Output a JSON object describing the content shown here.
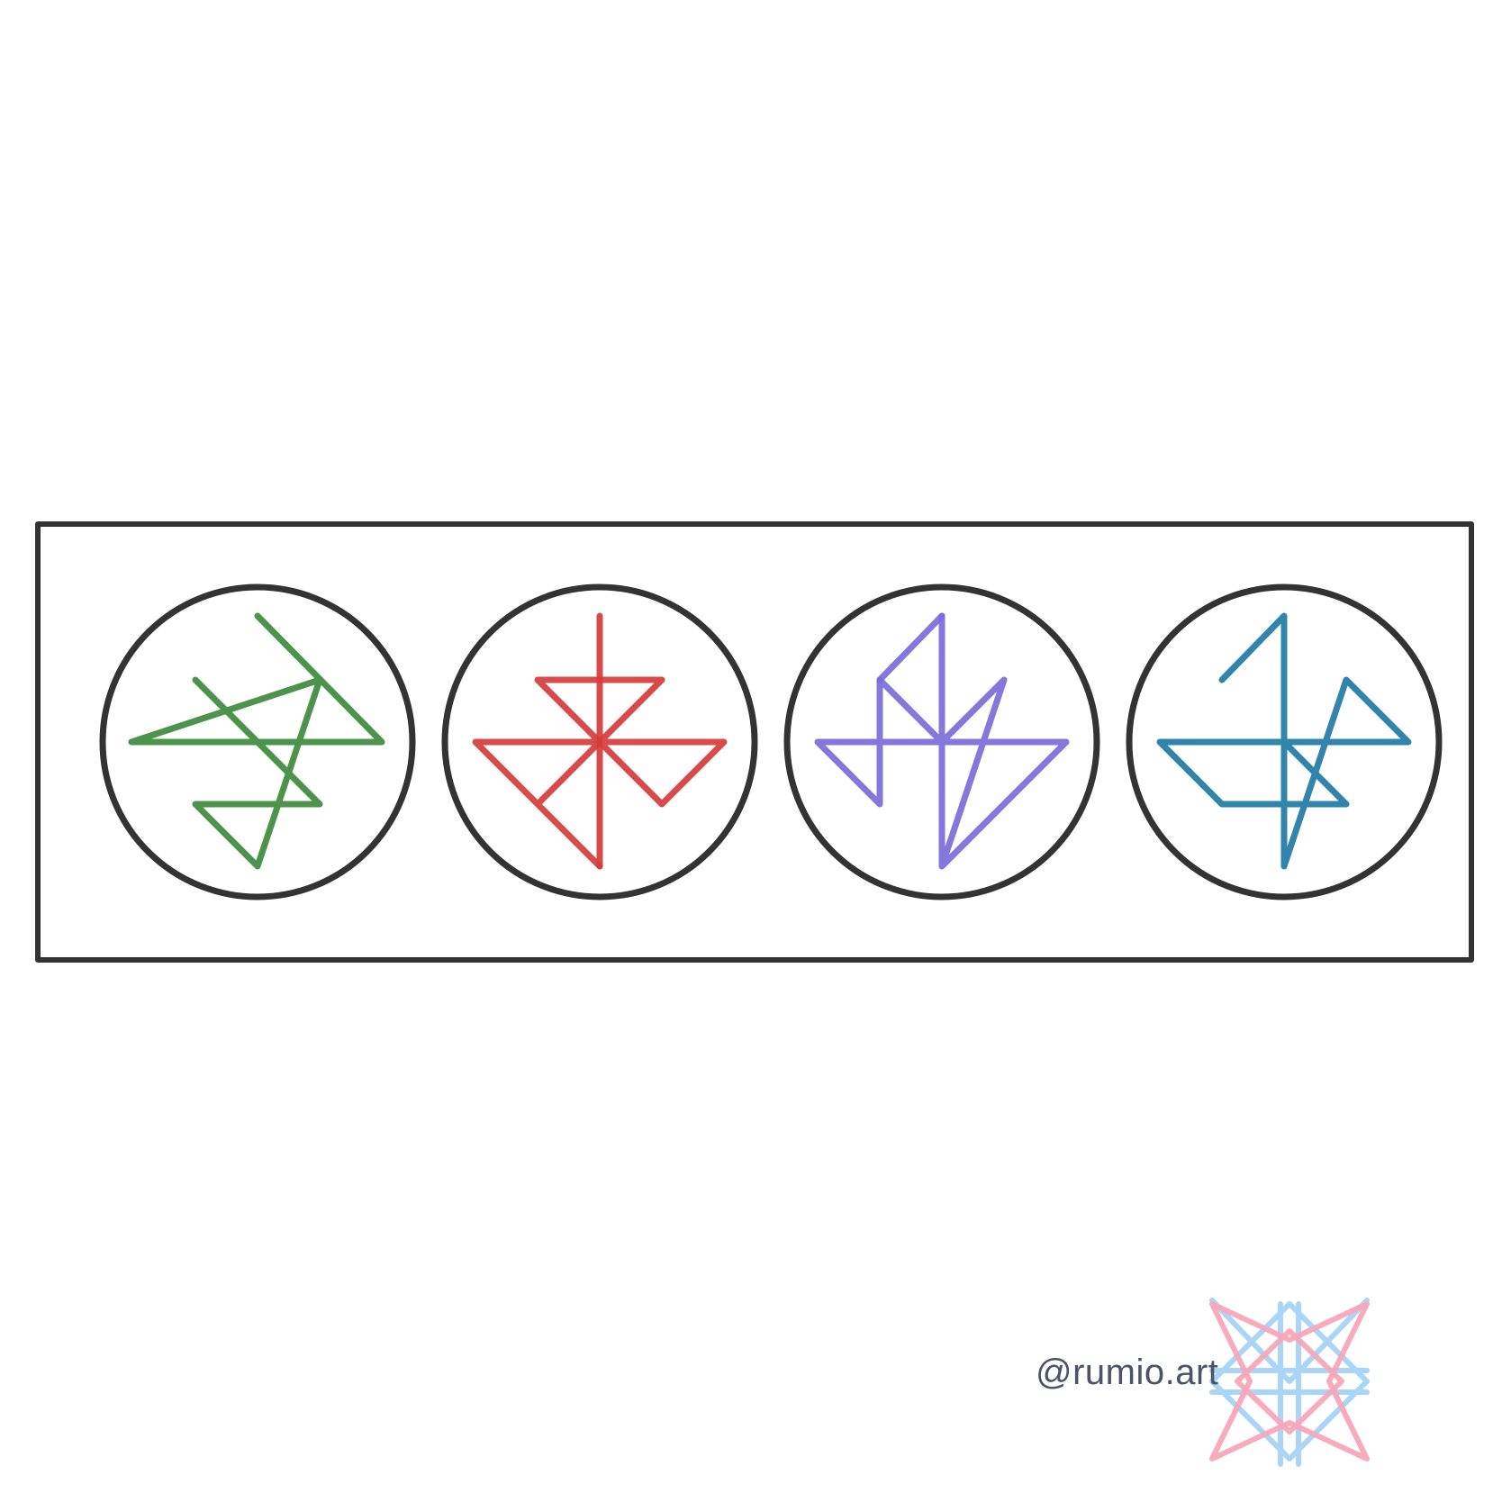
{
  "credit": {
    "handle": "@rumio.art"
  },
  "colors": {
    "frame": "#333333",
    "sigils": [
      "#3d8a3d",
      "#d53c3c",
      "#7b6bd8",
      "#1f7aa5"
    ],
    "logo_pink": "#f7a7b8",
    "logo_blue": "#a9d6f7"
  },
  "icons": {
    "logo": "star-knot-logo-icon"
  }
}
